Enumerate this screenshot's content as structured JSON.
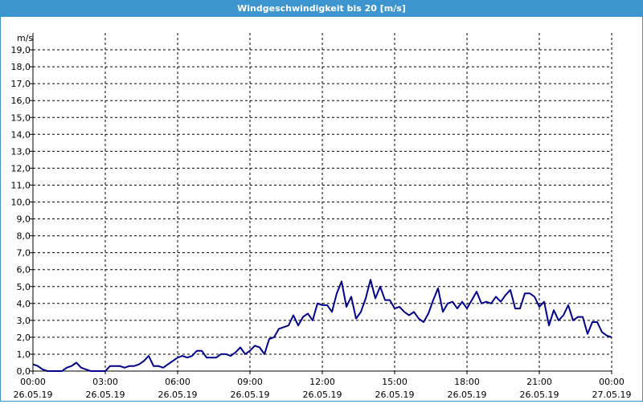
{
  "window": {
    "title": "Windgeschwindigkeit bis 20 [m/s]"
  },
  "colors": {
    "title_bar": "#3d95d0",
    "line": "#00008b",
    "grid": "#000000",
    "axis": "#000000"
  },
  "chart_data": {
    "type": "line",
    "title": "Windgeschwindigkeit bis 20 [m/s]",
    "ylabel": "m/s",
    "xlabel": "",
    "ylim": [
      0,
      20
    ],
    "xlim_hours": [
      0,
      24
    ],
    "grid": true,
    "y_ticks": [
      "0,0",
      "1,0",
      "2,0",
      "3,0",
      "4,0",
      "5,0",
      "6,0",
      "7,0",
      "8,0",
      "9,0",
      "10,0",
      "11,0",
      "12,0",
      "13,0",
      "14,0",
      "15,0",
      "16,0",
      "17,0",
      "18,0",
      "19,0"
    ],
    "x_ticks": [
      {
        "time": "00:00",
        "date": "26.05.19"
      },
      {
        "time": "03:00",
        "date": "26.05.19"
      },
      {
        "time": "06:00",
        "date": "26.05.19"
      },
      {
        "time": "09:00",
        "date": "26.05.19"
      },
      {
        "time": "12:00",
        "date": "26.05.19"
      },
      {
        "time": "15:00",
        "date": "26.05.19"
      },
      {
        "time": "18:00",
        "date": "26.05.19"
      },
      {
        "time": "21:00",
        "date": "26.05.19"
      },
      {
        "time": "00:00",
        "date": "27.05.19"
      }
    ],
    "series": [
      {
        "color": "#00008b",
        "points": [
          [
            0.0,
            0.4
          ],
          [
            0.2,
            0.3
          ],
          [
            0.4,
            0.1
          ],
          [
            0.6,
            0.0
          ],
          [
            0.8,
            0.0
          ],
          [
            1.0,
            0.0
          ],
          [
            1.2,
            0.0
          ],
          [
            1.4,
            0.2
          ],
          [
            1.6,
            0.3
          ],
          [
            1.8,
            0.5
          ],
          [
            2.0,
            0.2
          ],
          [
            2.2,
            0.1
          ],
          [
            2.4,
            0.0
          ],
          [
            2.6,
            0.0
          ],
          [
            2.8,
            0.0
          ],
          [
            3.0,
            0.0
          ],
          [
            3.2,
            0.3
          ],
          [
            3.4,
            0.3
          ],
          [
            3.6,
            0.3
          ],
          [
            3.8,
            0.2
          ],
          [
            4.0,
            0.3
          ],
          [
            4.2,
            0.3
          ],
          [
            4.4,
            0.4
          ],
          [
            4.6,
            0.6
          ],
          [
            4.8,
            0.9
          ],
          [
            5.0,
            0.3
          ],
          [
            5.2,
            0.3
          ],
          [
            5.4,
            0.2
          ],
          [
            5.6,
            0.4
          ],
          [
            5.8,
            0.6
          ],
          [
            6.0,
            0.8
          ],
          [
            6.2,
            0.9
          ],
          [
            6.4,
            0.8
          ],
          [
            6.6,
            0.9
          ],
          [
            6.8,
            1.2
          ],
          [
            7.0,
            1.2
          ],
          [
            7.2,
            0.8
          ],
          [
            7.4,
            0.8
          ],
          [
            7.6,
            0.8
          ],
          [
            7.8,
            1.0
          ],
          [
            8.0,
            1.0
          ],
          [
            8.2,
            0.9
          ],
          [
            8.4,
            1.1
          ],
          [
            8.6,
            1.4
          ],
          [
            8.8,
            1.0
          ],
          [
            9.0,
            1.2
          ],
          [
            9.2,
            1.5
          ],
          [
            9.4,
            1.4
          ],
          [
            9.6,
            1.0
          ],
          [
            9.8,
            1.9
          ],
          [
            10.0,
            2.0
          ],
          [
            10.2,
            2.5
          ],
          [
            10.4,
            2.6
          ],
          [
            10.6,
            2.7
          ],
          [
            10.8,
            3.3
          ],
          [
            11.0,
            2.7
          ],
          [
            11.2,
            3.2
          ],
          [
            11.4,
            3.4
          ],
          [
            11.6,
            3.0
          ],
          [
            11.8,
            4.0
          ],
          [
            12.0,
            3.9
          ],
          [
            12.2,
            3.9
          ],
          [
            12.4,
            3.5
          ],
          [
            12.6,
            4.6
          ],
          [
            12.8,
            5.3
          ],
          [
            13.0,
            3.8
          ],
          [
            13.2,
            4.4
          ],
          [
            13.4,
            3.1
          ],
          [
            13.6,
            3.5
          ],
          [
            13.8,
            4.3
          ],
          [
            14.0,
            5.4
          ],
          [
            14.2,
            4.3
          ],
          [
            14.4,
            5.0
          ],
          [
            14.6,
            4.2
          ],
          [
            14.8,
            4.2
          ],
          [
            15.0,
            3.7
          ],
          [
            15.2,
            3.8
          ],
          [
            15.4,
            3.5
          ],
          [
            15.6,
            3.3
          ],
          [
            15.8,
            3.5
          ],
          [
            16.0,
            3.1
          ],
          [
            16.2,
            2.9
          ],
          [
            16.4,
            3.4
          ],
          [
            16.6,
            4.2
          ],
          [
            16.8,
            4.9
          ],
          [
            17.0,
            3.5
          ],
          [
            17.2,
            4.0
          ],
          [
            17.4,
            4.1
          ],
          [
            17.6,
            3.7
          ],
          [
            17.8,
            4.1
          ],
          [
            18.0,
            3.7
          ],
          [
            18.2,
            4.2
          ],
          [
            18.4,
            4.7
          ],
          [
            18.6,
            4.0
          ],
          [
            18.8,
            4.1
          ],
          [
            19.0,
            4.0
          ],
          [
            19.2,
            4.4
          ],
          [
            19.4,
            4.1
          ],
          [
            19.6,
            4.5
          ],
          [
            19.8,
            4.8
          ],
          [
            20.0,
            3.7
          ],
          [
            20.2,
            3.7
          ],
          [
            20.4,
            4.6
          ],
          [
            20.6,
            4.6
          ],
          [
            20.8,
            4.4
          ],
          [
            21.0,
            3.8
          ],
          [
            21.2,
            4.1
          ],
          [
            21.4,
            2.7
          ],
          [
            21.6,
            3.6
          ],
          [
            21.8,
            3.0
          ],
          [
            22.0,
            3.3
          ],
          [
            22.2,
            3.9
          ],
          [
            22.4,
            3.0
          ],
          [
            22.6,
            3.2
          ],
          [
            22.8,
            3.2
          ],
          [
            23.0,
            2.2
          ],
          [
            23.2,
            2.9
          ],
          [
            23.4,
            2.9
          ],
          [
            23.6,
            2.3
          ],
          [
            23.8,
            2.1
          ],
          [
            24.0,
            2.0
          ]
        ]
      }
    ]
  }
}
